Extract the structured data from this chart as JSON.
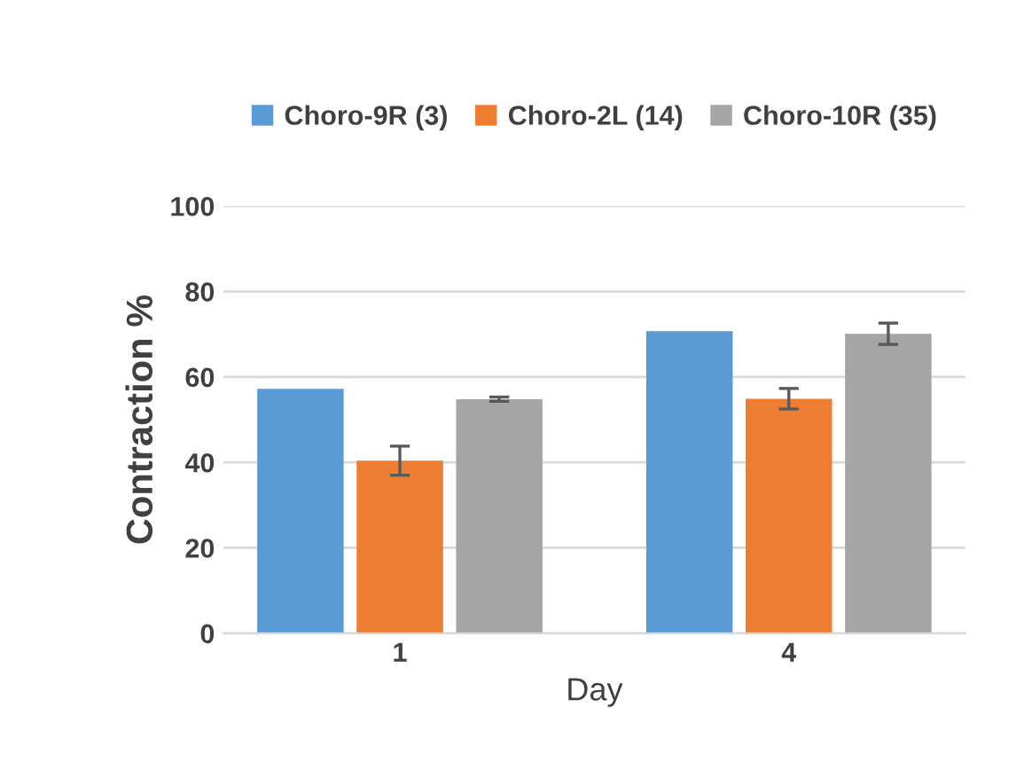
{
  "chart_data": {
    "type": "bar",
    "xlabel": "Day",
    "ylabel": "Contraction %",
    "categories": [
      "1",
      "4"
    ],
    "series": [
      {
        "name": "Choro-9R (3)",
        "color": "#5b9bd5",
        "values": [
          57.2,
          70.7
        ]
      },
      {
        "name": "Choro-2L (14)",
        "color": "#ed7d31",
        "values": [
          40.4,
          54.9
        ],
        "errors": [
          3.4,
          2.4
        ]
      },
      {
        "name": "Choro-10R (35)",
        "color": "#a5a5a5",
        "values": [
          54.8,
          70.1
        ],
        "errors": [
          0.5,
          2.5
        ]
      }
    ],
    "ylim": [
      0,
      100
    ],
    "yticks": [
      0,
      20,
      40,
      60,
      80,
      100
    ],
    "grid": "y",
    "legend": "top"
  }
}
